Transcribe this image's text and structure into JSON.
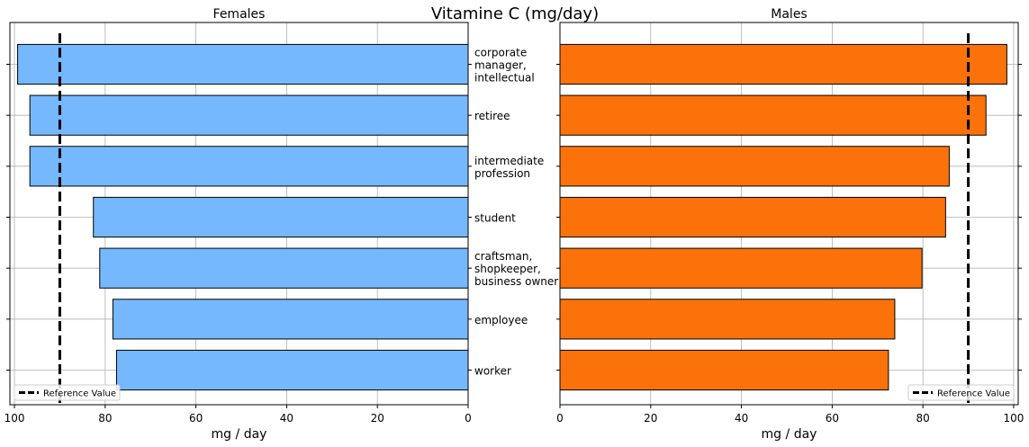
{
  "chart_data": {
    "type": "bar",
    "orientation": "horizontal",
    "title": "Vitamine C (mg/day)",
    "categories": [
      "corporate manager, intellectual",
      "retiree",
      "intermediate profession",
      "student",
      "craftsman, shopkeeper, business owner",
      "employee",
      "worker"
    ],
    "category_lines": [
      [
        "corporate",
        "manager,",
        "intellectual"
      ],
      [
        "retiree"
      ],
      [
        "intermediate",
        "profession"
      ],
      [
        "student"
      ],
      [
        "craftsman,",
        "shopkeeper,",
        "business owner"
      ],
      [
        "employee"
      ],
      [
        "worker"
      ]
    ],
    "panels": [
      {
        "title": "Females",
        "xlabel": "mg / day",
        "xlim": [
          101,
          0
        ],
        "xticks": [
          100,
          80,
          60,
          40,
          20,
          0
        ],
        "reference_value": 90,
        "legend_label": "Reference Value",
        "legend_position": "lower-left",
        "bar_color": "#75b8fd",
        "values": [
          99.3,
          96.6,
          96.6,
          82.6,
          81.2,
          78.3,
          77.5
        ]
      },
      {
        "title": "Males",
        "xlabel": "mg / day",
        "xlim": [
          0,
          101
        ],
        "xticks": [
          0,
          20,
          40,
          60,
          80,
          100
        ],
        "reference_value": 90,
        "legend_label": "Reference Value",
        "legend_position": "lower-right",
        "bar_color": "#fb720b",
        "values": [
          98.5,
          93.9,
          85.8,
          85.0,
          79.8,
          73.8,
          72.4
        ]
      }
    ],
    "grid": true
  }
}
